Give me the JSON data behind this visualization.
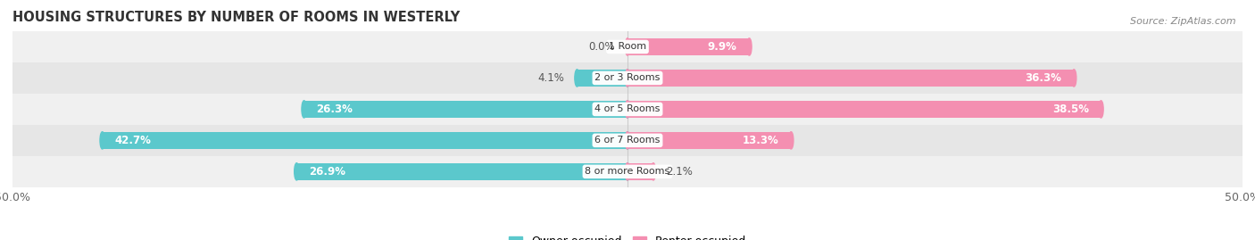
{
  "title": "HOUSING STRUCTURES BY NUMBER OF ROOMS IN WESTERLY",
  "source": "Source: ZipAtlas.com",
  "categories": [
    "1 Room",
    "2 or 3 Rooms",
    "4 or 5 Rooms",
    "6 or 7 Rooms",
    "8 or more Rooms"
  ],
  "owner_values": [
    0.0,
    4.1,
    26.3,
    42.7,
    26.9
  ],
  "renter_values": [
    9.9,
    36.3,
    38.5,
    13.3,
    2.1
  ],
  "owner_color": "#5BC8CC",
  "renter_color": "#F48FB1",
  "row_bg_colors": [
    "#F0F0F0",
    "#E6E6E6"
  ],
  "xlim": [
    -50,
    50
  ],
  "bar_height": 0.55,
  "label_fontsize": 8.5,
  "title_fontsize": 10.5,
  "legend_fontsize": 9,
  "source_fontsize": 8,
  "category_fontsize": 8,
  "text_threshold": 8
}
